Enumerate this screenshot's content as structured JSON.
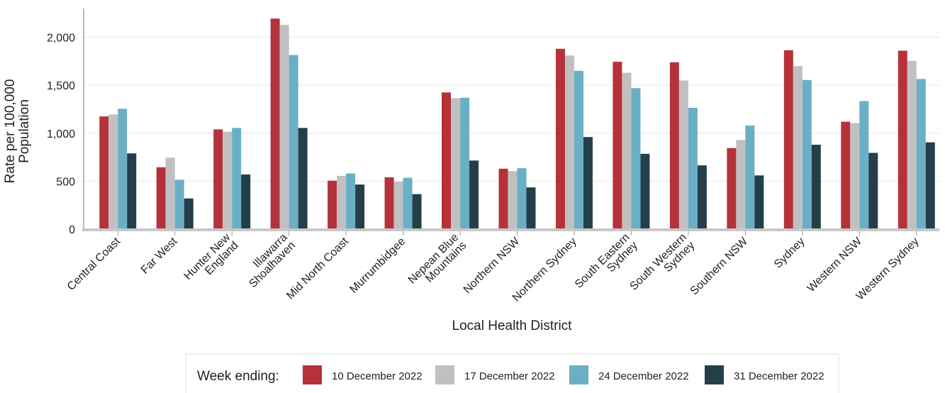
{
  "chart_data": {
    "type": "bar",
    "y_label": "Rate per 100,000\nPopulation",
    "x_label": "Local Health District",
    "legend_title": "Week ending:",
    "legend_position": "bottom",
    "grid": true,
    "categories": [
      "Central Coast",
      "Far West",
      "Hunter New\nEngland",
      "Illawarra\nShoalhaven",
      "Mid North Coast",
      "Murrumbidgee",
      "Nepean Blue\nMountains",
      "Northern NSW",
      "Northern Sydney",
      "South Eastern\nSydney",
      "South Western\nSydney",
      "Southern NSW",
      "Sydney",
      "Western NSW",
      "Western Sydney"
    ],
    "series": [
      {
        "name": "10 December 2022",
        "color": "#b5323a",
        "values": [
          1175,
          645,
          1040,
          2195,
          505,
          540,
          1425,
          630,
          1880,
          1745,
          1740,
          845,
          1865,
          1120,
          1860
        ]
      },
      {
        "name": "17 December 2022",
        "color": "#c0c0c0",
        "values": [
          1195,
          745,
          1015,
          2130,
          555,
          495,
          1365,
          605,
          1810,
          1630,
          1550,
          930,
          1700,
          1105,
          1755
        ]
      },
      {
        "name": "24 December 2022",
        "color": "#6aafc6",
        "values": [
          1255,
          515,
          1055,
          1815,
          580,
          535,
          1370,
          635,
          1650,
          1470,
          1265,
          1080,
          1555,
          1335,
          1565
        ]
      },
      {
        "name": "31 December 2022",
        "color": "#253f4a",
        "values": [
          790,
          320,
          570,
          1055,
          465,
          365,
          715,
          435,
          960,
          785,
          665,
          560,
          880,
          795,
          905
        ]
      }
    ],
    "ylim": [
      0,
      2300
    ],
    "yticks": [
      0,
      500,
      {
        "value": 1000,
        "label": "1,000"
      },
      {
        "value": 1500,
        "label": "1,500"
      },
      {
        "value": 2000,
        "label": "2,000"
      }
    ]
  }
}
